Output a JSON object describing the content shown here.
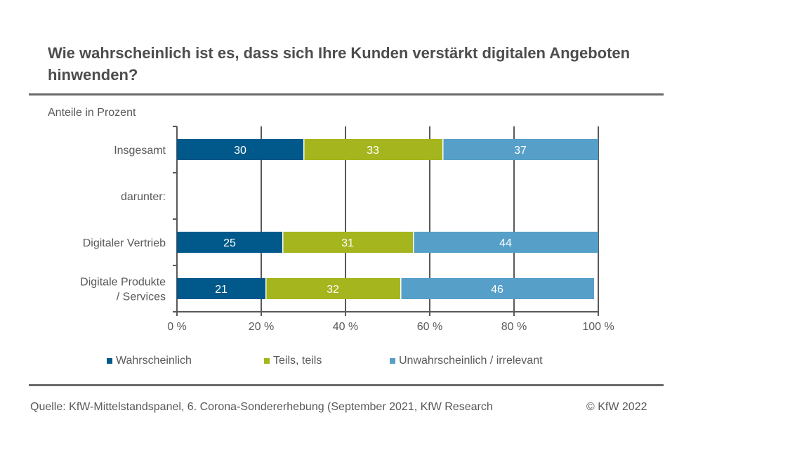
{
  "header": {
    "title": "Wie wahrscheinlich ist es, dass sich Ihre Kunden verstärkt digitalen Angeboten hinwenden?",
    "subtitle": "Anteile in Prozent"
  },
  "footer": {
    "source": "Quelle: KfW-Mittelstandspanel, 6. Corona-Sondererhebung (September 2021, KfW Research",
    "copyright": "© KfW 2022"
  },
  "chart_data": {
    "type": "bar",
    "orientation": "horizontal",
    "stacked": true,
    "title": "Wie wahrscheinlich ist es, dass sich Ihre Kunden verstärkt digitalen Angeboten hinwenden?",
    "xlabel": "",
    "ylabel": "Anteile in Prozent",
    "xlim": [
      0,
      100
    ],
    "x_ticks": [
      "0 %",
      "20 %",
      "40 %",
      "60 %",
      "80 %",
      "100 %"
    ],
    "x_tick_values": [
      0,
      20,
      40,
      60,
      80,
      100
    ],
    "grid": true,
    "legend_position": "bottom",
    "categories": [
      "Insgesamt",
      "darunter:",
      "Digitaler Vertrieb",
      "Digitale Produkte / Services"
    ],
    "category_lines": [
      [
        "Insgesamt"
      ],
      [
        "darunter:"
      ],
      [
        "Digitaler Vertrieb"
      ],
      [
        "Digitale Produkte",
        "/ Services"
      ]
    ],
    "series": [
      {
        "name": "Wahrscheinlich",
        "color": "#00598a",
        "values": [
          30,
          null,
          25,
          21
        ]
      },
      {
        "name": "Teils, teils",
        "color": "#a5b51d",
        "values": [
          33,
          null,
          31,
          32
        ]
      },
      {
        "name": "Unwahrscheinlich / irrelevant",
        "color": "#569fc8",
        "values": [
          37,
          null,
          44,
          46
        ]
      }
    ]
  }
}
